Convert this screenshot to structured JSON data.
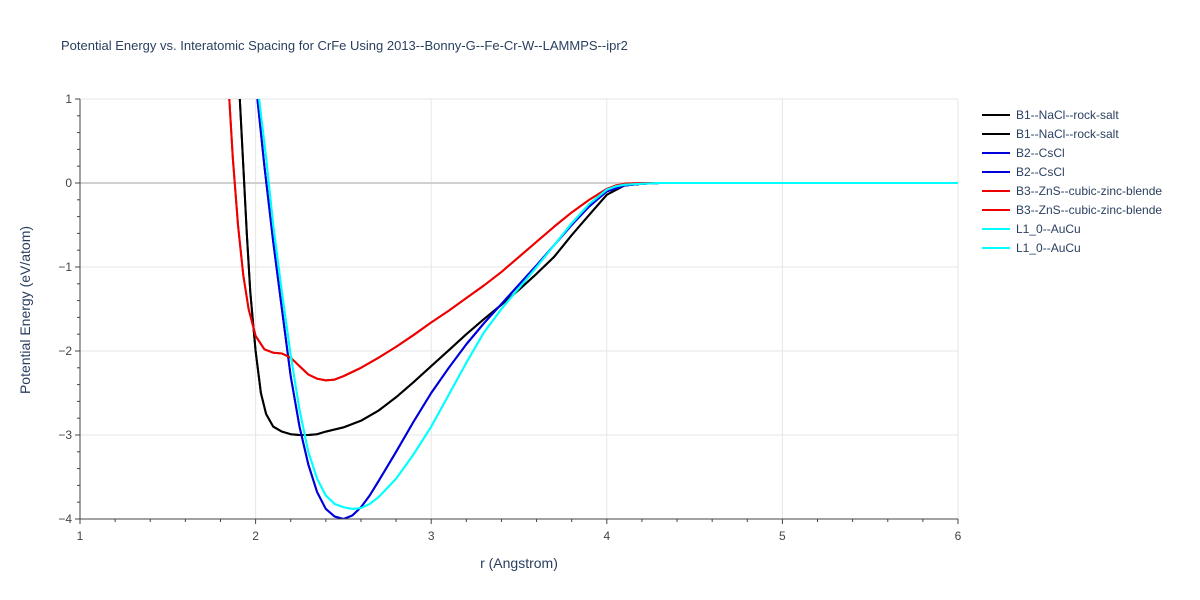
{
  "chart_data": {
    "type": "line",
    "title": "Potential Energy vs. Interatomic Spacing for CrFe Using 2013--Bonny-G--Fe-Cr-W--LAMMPS--ipr2",
    "xlabel": "r (Angstrom)",
    "ylabel": "Potential Energy (eV/atom)",
    "xlim": [
      1,
      6
    ],
    "ylim": [
      -4,
      1
    ],
    "xticks": [
      1,
      2,
      3,
      4,
      5,
      6
    ],
    "yticks": [
      -4,
      -3,
      -2,
      -1,
      0,
      1
    ],
    "grid": true,
    "legend_position": "right",
    "series": [
      {
        "name": "B1--NaCl--rock-salt",
        "color": "#000000",
        "x": [
          1.91,
          1.93,
          1.95,
          1.97,
          2.0,
          2.03,
          2.06,
          2.1,
          2.15,
          2.2,
          2.25,
          2.3,
          2.35,
          2.4,
          2.5,
          2.6,
          2.7,
          2.8,
          2.9,
          3.0,
          3.1,
          3.2,
          3.3,
          3.4,
          3.5,
          3.6,
          3.7,
          3.8,
          3.9,
          4.0,
          4.1,
          4.2,
          4.3,
          4.5,
          5.0,
          5.5,
          6.0
        ],
        "y": [
          1.0,
          0.2,
          -0.6,
          -1.3,
          -2.0,
          -2.5,
          -2.75,
          -2.9,
          -2.96,
          -2.99,
          -3.0,
          -3.0,
          -2.99,
          -2.96,
          -2.91,
          -2.83,
          -2.71,
          -2.55,
          -2.37,
          -2.18,
          -1.99,
          -1.8,
          -1.62,
          -1.45,
          -1.27,
          -1.08,
          -0.88,
          -0.62,
          -0.38,
          -0.14,
          -0.03,
          -0.01,
          0.0,
          0.0,
          0.0,
          0.0,
          0.0
        ]
      },
      {
        "name": "B1--NaCl--rock-salt",
        "color": "#000000",
        "x": [
          1.91,
          1.93,
          1.95,
          1.97,
          2.0,
          2.03,
          2.06,
          2.1,
          2.15,
          2.2,
          2.25,
          2.3,
          2.35,
          2.4,
          2.5,
          2.6,
          2.7,
          2.8,
          2.9,
          3.0,
          3.1,
          3.2,
          3.3,
          3.4,
          3.5,
          3.6,
          3.7,
          3.8,
          3.9,
          4.0,
          4.1,
          4.2,
          4.3,
          4.5,
          5.0,
          5.5,
          6.0
        ],
        "y": [
          1.0,
          0.2,
          -0.6,
          -1.3,
          -2.0,
          -2.5,
          -2.75,
          -2.9,
          -2.96,
          -2.99,
          -3.0,
          -3.0,
          -2.99,
          -2.96,
          -2.91,
          -2.83,
          -2.71,
          -2.55,
          -2.37,
          -2.18,
          -1.99,
          -1.8,
          -1.62,
          -1.45,
          -1.27,
          -1.08,
          -0.88,
          -0.62,
          -0.38,
          -0.14,
          -0.03,
          -0.01,
          0.0,
          0.0,
          0.0,
          0.0,
          0.0
        ]
      },
      {
        "name": "B2--CsCl",
        "color": "#0000dd",
        "x": [
          2.01,
          2.05,
          2.1,
          2.15,
          2.2,
          2.25,
          2.3,
          2.35,
          2.4,
          2.45,
          2.5,
          2.55,
          2.6,
          2.65,
          2.7,
          2.8,
          2.9,
          3.0,
          3.1,
          3.2,
          3.3,
          3.4,
          3.5,
          3.6,
          3.7,
          3.8,
          3.9,
          4.0,
          4.1,
          4.2,
          4.3,
          4.5,
          5.0,
          5.5,
          6.0
        ],
        "y": [
          1.0,
          0.2,
          -0.7,
          -1.5,
          -2.3,
          -2.9,
          -3.35,
          -3.68,
          -3.88,
          -3.97,
          -4.0,
          -3.96,
          -3.86,
          -3.72,
          -3.55,
          -3.2,
          -2.84,
          -2.5,
          -2.2,
          -1.92,
          -1.67,
          -1.44,
          -1.21,
          -0.98,
          -0.74,
          -0.5,
          -0.28,
          -0.1,
          -0.03,
          -0.01,
          0.0,
          0.0,
          0.0,
          0.0,
          0.0
        ]
      },
      {
        "name": "B2--CsCl",
        "color": "#0000dd",
        "x": [
          2.01,
          2.05,
          2.1,
          2.15,
          2.2,
          2.25,
          2.3,
          2.35,
          2.4,
          2.45,
          2.5,
          2.55,
          2.6,
          2.65,
          2.7,
          2.8,
          2.9,
          3.0,
          3.1,
          3.2,
          3.3,
          3.4,
          3.5,
          3.6,
          3.7,
          3.8,
          3.9,
          4.0,
          4.1,
          4.2,
          4.3,
          4.5,
          5.0,
          5.5,
          6.0
        ],
        "y": [
          1.0,
          0.2,
          -0.7,
          -1.5,
          -2.3,
          -2.9,
          -3.35,
          -3.68,
          -3.88,
          -3.97,
          -4.0,
          -3.96,
          -3.86,
          -3.72,
          -3.55,
          -3.2,
          -2.84,
          -2.5,
          -2.2,
          -1.92,
          -1.67,
          -1.44,
          -1.21,
          -0.98,
          -0.74,
          -0.5,
          -0.28,
          -0.1,
          -0.03,
          -0.01,
          0.0,
          0.0,
          0.0,
          0.0,
          0.0
        ]
      },
      {
        "name": "B3--ZnS--cubic-zinc-blende",
        "color": "#ee0000",
        "x": [
          1.85,
          1.87,
          1.9,
          1.93,
          1.96,
          2.0,
          2.05,
          2.1,
          2.15,
          2.2,
          2.25,
          2.3,
          2.35,
          2.4,
          2.45,
          2.5,
          2.6,
          2.7,
          2.8,
          2.9,
          3.0,
          3.1,
          3.2,
          3.3,
          3.4,
          3.5,
          3.6,
          3.7,
          3.8,
          3.9,
          4.0,
          4.05,
          4.1,
          4.2,
          4.3,
          4.5,
          5.0,
          5.5,
          6.0
        ],
        "y": [
          1.0,
          0.3,
          -0.5,
          -1.1,
          -1.5,
          -1.82,
          -1.98,
          -2.02,
          -2.03,
          -2.08,
          -2.18,
          -2.28,
          -2.33,
          -2.35,
          -2.34,
          -2.3,
          -2.2,
          -2.08,
          -1.95,
          -1.81,
          -1.66,
          -1.52,
          -1.37,
          -1.22,
          -1.06,
          -0.88,
          -0.7,
          -0.52,
          -0.35,
          -0.2,
          -0.07,
          -0.03,
          -0.01,
          0.0,
          0.0,
          0.0,
          0.0,
          0.0,
          0.0
        ]
      },
      {
        "name": "B3--ZnS--cubic-zinc-blende",
        "color": "#ee0000",
        "x": [
          1.85,
          1.87,
          1.9,
          1.93,
          1.96,
          2.0,
          2.05,
          2.1,
          2.15,
          2.2,
          2.25,
          2.3,
          2.35,
          2.4,
          2.45,
          2.5,
          2.6,
          2.7,
          2.8,
          2.9,
          3.0,
          3.1,
          3.2,
          3.3,
          3.4,
          3.5,
          3.6,
          3.7,
          3.8,
          3.9,
          4.0,
          4.05,
          4.1,
          4.2,
          4.3,
          4.5,
          5.0,
          5.5,
          6.0
        ],
        "y": [
          1.0,
          0.3,
          -0.5,
          -1.1,
          -1.5,
          -1.82,
          -1.98,
          -2.02,
          -2.03,
          -2.08,
          -2.18,
          -2.28,
          -2.33,
          -2.35,
          -2.34,
          -2.3,
          -2.2,
          -2.08,
          -1.95,
          -1.81,
          -1.66,
          -1.52,
          -1.37,
          -1.22,
          -1.06,
          -0.88,
          -0.7,
          -0.52,
          -0.35,
          -0.2,
          -0.07,
          -0.03,
          -0.01,
          0.0,
          0.0,
          0.0,
          0.0,
          0.0,
          0.0
        ]
      },
      {
        "name": "L1_0--AuCu",
        "color": "#00ffff",
        "x": [
          2.02,
          2.06,
          2.1,
          2.15,
          2.2,
          2.25,
          2.3,
          2.35,
          2.4,
          2.45,
          2.5,
          2.55,
          2.6,
          2.65,
          2.7,
          2.8,
          2.9,
          3.0,
          3.1,
          3.2,
          3.3,
          3.4,
          3.5,
          3.6,
          3.7,
          3.8,
          3.9,
          4.0,
          4.05,
          4.1,
          4.2,
          4.3,
          4.5,
          5.0,
          5.5,
          6.0
        ],
        "y": [
          1.0,
          0.3,
          -0.5,
          -1.3,
          -2.05,
          -2.7,
          -3.2,
          -3.52,
          -3.72,
          -3.82,
          -3.86,
          -3.88,
          -3.87,
          -3.82,
          -3.74,
          -3.52,
          -3.23,
          -2.9,
          -2.52,
          -2.14,
          -1.78,
          -1.5,
          -1.25,
          -1.0,
          -0.74,
          -0.48,
          -0.25,
          -0.08,
          -0.04,
          -0.02,
          -0.01,
          0.0,
          0.0,
          0.0,
          0.0,
          0.0
        ]
      },
      {
        "name": "L1_0--AuCu",
        "color": "#00ffff",
        "x": [
          2.02,
          2.06,
          2.1,
          2.15,
          2.2,
          2.25,
          2.3,
          2.35,
          2.4,
          2.45,
          2.5,
          2.55,
          2.6,
          2.65,
          2.7,
          2.8,
          2.9,
          3.0,
          3.1,
          3.2,
          3.3,
          3.4,
          3.5,
          3.6,
          3.7,
          3.8,
          3.9,
          4.0,
          4.05,
          4.1,
          4.2,
          4.3,
          4.5,
          5.0,
          5.5,
          6.0
        ],
        "y": [
          1.0,
          0.3,
          -0.5,
          -1.3,
          -2.05,
          -2.7,
          -3.2,
          -3.52,
          -3.72,
          -3.82,
          -3.86,
          -3.88,
          -3.87,
          -3.82,
          -3.74,
          -3.52,
          -3.23,
          -2.9,
          -2.52,
          -2.14,
          -1.78,
          -1.5,
          -1.25,
          -1.0,
          -0.74,
          -0.48,
          -0.25,
          -0.08,
          -0.04,
          -0.02,
          -0.01,
          0.0,
          0.0,
          0.0,
          0.0,
          0.0
        ]
      }
    ]
  }
}
